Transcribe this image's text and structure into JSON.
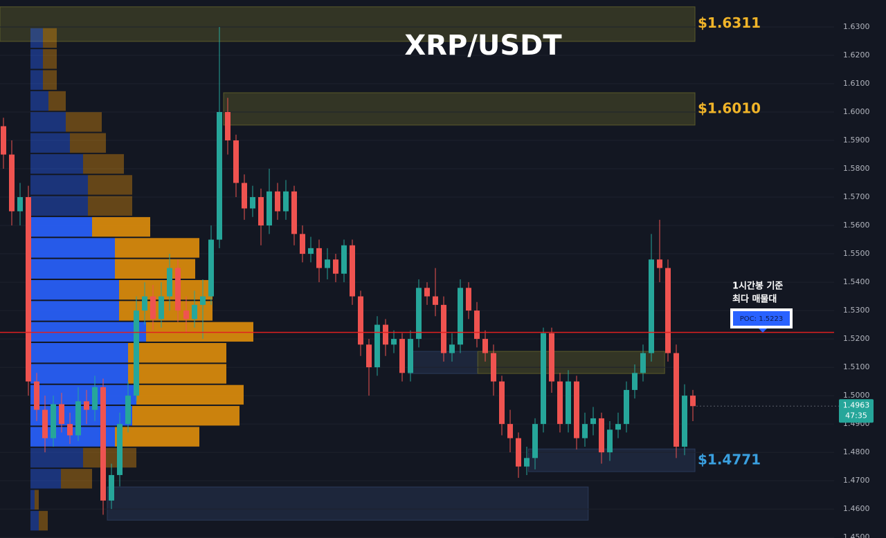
{
  "chart_data": {
    "type": "candlestick",
    "title": "XRP/USDT",
    "ylim": [
      1.4498,
      1.6395
    ],
    "yticks": [
      {
        "value": 1.45,
        "label": "1.4500"
      },
      {
        "value": 1.46,
        "label": "1.4600"
      },
      {
        "value": 1.47,
        "label": "1.4700"
      },
      {
        "value": 1.48,
        "label": "1.4800"
      },
      {
        "value": 1.49,
        "label": "1.4900"
      },
      {
        "value": 1.5,
        "label": "1.5000"
      },
      {
        "value": 1.51,
        "label": "1.5100"
      },
      {
        "value": 1.52,
        "label": "1.5200"
      },
      {
        "value": 1.53,
        "label": "1.5300"
      },
      {
        "value": 1.54,
        "label": "1.5400"
      },
      {
        "value": 1.55,
        "label": "1.5500"
      },
      {
        "value": 1.56,
        "label": "1.5600"
      },
      {
        "value": 1.57,
        "label": "1.5700"
      },
      {
        "value": 1.58,
        "label": "1.5800"
      },
      {
        "value": 1.59,
        "label": "1.5900"
      },
      {
        "value": 1.6,
        "label": "1.6000"
      },
      {
        "value": 1.61,
        "label": "1.6100"
      },
      {
        "value": 1.62,
        "label": "1.6200"
      },
      {
        "value": 1.63,
        "label": "1.6300"
      }
    ],
    "grid": true,
    "up_color": "#26a69a",
    "down_color": "#ef5350",
    "open": [
      1.595,
      1.585,
      1.565,
      1.57,
      1.505,
      1.495,
      1.485,
      1.497,
      1.49,
      1.486,
      1.498,
      1.495,
      1.503,
      1.463,
      1.472,
      1.49,
      1.5,
      1.53,
      1.535,
      1.527,
      1.535,
      1.545,
      1.53,
      1.527,
      1.532,
      1.535,
      1.555,
      1.6,
      1.59,
      1.575,
      1.566,
      1.57,
      1.56,
      1.572,
      1.565,
      1.572,
      1.557,
      1.55,
      1.552,
      1.545,
      1.548,
      1.543,
      1.553,
      1.535,
      1.518,
      1.51,
      1.525,
      1.518,
      1.52,
      1.508,
      1.52,
      1.538,
      1.535,
      1.532,
      1.515,
      1.518,
      1.538,
      1.53,
      1.52,
      1.515,
      1.505,
      1.49,
      1.485,
      1.475,
      1.478,
      1.49,
      1.522,
      1.505,
      1.49,
      1.505,
      1.485,
      1.49,
      1.492,
      1.48,
      1.488,
      1.49,
      1.502,
      1.508,
      1.515,
      1.548,
      1.545,
      1.515,
      1.482,
      1.5
    ],
    "high": [
      1.598,
      1.59,
      1.575,
      1.574,
      1.508,
      1.5,
      1.5,
      1.501,
      1.494,
      1.503,
      1.502,
      1.507,
      1.506,
      1.476,
      1.494,
      1.505,
      1.535,
      1.54,
      1.539,
      1.54,
      1.55,
      1.548,
      1.535,
      1.537,
      1.541,
      1.56,
      1.63,
      1.605,
      1.592,
      1.578,
      1.574,
      1.573,
      1.58,
      1.575,
      1.576,
      1.574,
      1.56,
      1.556,
      1.555,
      1.552,
      1.55,
      1.555,
      1.555,
      1.537,
      1.52,
      1.528,
      1.527,
      1.523,
      1.522,
      1.523,
      1.541,
      1.54,
      1.545,
      1.535,
      1.522,
      1.541,
      1.54,
      1.533,
      1.523,
      1.518,
      1.507,
      1.495,
      1.487,
      1.482,
      1.492,
      1.524,
      1.524,
      1.508,
      1.509,
      1.507,
      1.494,
      1.496,
      1.494,
      1.491,
      1.494,
      1.505,
      1.511,
      1.518,
      1.557,
      1.562,
      1.548,
      1.518,
      1.504,
      1.502
    ],
    "low": [
      1.58,
      1.56,
      1.56,
      1.5,
      1.491,
      1.48,
      1.482,
      1.487,
      1.483,
      1.484,
      1.49,
      1.491,
      1.458,
      1.46,
      1.468,
      1.487,
      1.498,
      1.525,
      1.523,
      1.524,
      1.53,
      1.526,
      1.522,
      1.524,
      1.52,
      1.532,
      1.552,
      1.585,
      1.57,
      1.562,
      1.563,
      1.553,
      1.557,
      1.562,
      1.562,
      1.553,
      1.547,
      1.547,
      1.54,
      1.541,
      1.54,
      1.54,
      1.532,
      1.514,
      1.5,
      1.507,
      1.514,
      1.515,
      1.505,
      1.505,
      1.517,
      1.532,
      1.528,
      1.512,
      1.512,
      1.515,
      1.527,
      1.517,
      1.512,
      1.5,
      1.486,
      1.48,
      1.471,
      1.472,
      1.474,
      1.487,
      1.501,
      1.487,
      1.487,
      1.481,
      1.482,
      1.486,
      1.476,
      1.477,
      1.485,
      1.487,
      1.499,
      1.505,
      1.512,
      1.54,
      1.512,
      1.478,
      1.479,
      1.491
    ],
    "close": [
      1.585,
      1.565,
      1.57,
      1.505,
      1.495,
      1.485,
      1.497,
      1.49,
      1.486,
      1.498,
      1.495,
      1.503,
      1.463,
      1.472,
      1.49,
      1.5,
      1.53,
      1.535,
      1.527,
      1.535,
      1.545,
      1.53,
      1.527,
      1.532,
      1.535,
      1.555,
      1.6,
      1.59,
      1.575,
      1.566,
      1.57,
      1.56,
      1.572,
      1.565,
      1.572,
      1.557,
      1.55,
      1.552,
      1.545,
      1.548,
      1.543,
      1.553,
      1.535,
      1.518,
      1.51,
      1.525,
      1.518,
      1.52,
      1.508,
      1.52,
      1.538,
      1.535,
      1.532,
      1.515,
      1.518,
      1.538,
      1.53,
      1.52,
      1.515,
      1.505,
      1.49,
      1.485,
      1.475,
      1.478,
      1.49,
      1.522,
      1.505,
      1.49,
      1.505,
      1.485,
      1.49,
      1.492,
      1.48,
      1.488,
      1.49,
      1.502,
      1.508,
      1.515,
      1.548,
      1.545,
      1.515,
      1.482,
      1.5,
      1.4963
    ],
    "volume_profile": {
      "bins": [
        1.6298,
        1.6224,
        1.615,
        1.6076,
        1.6002,
        1.5928,
        1.5854,
        1.578,
        1.5706,
        1.5632,
        1.5558,
        1.5484,
        1.541,
        1.5336,
        1.5262,
        1.5188,
        1.5114,
        1.504,
        1.4966,
        1.4892,
        1.4818,
        1.4744,
        1.467,
        1.4596,
        1.4522
      ],
      "up": [
        18,
        18,
        18,
        26,
        51,
        57,
        76,
        83,
        83,
        89,
        122,
        122,
        128,
        128,
        167,
        141,
        141,
        153,
        147,
        122,
        76,
        44,
        6,
        12
      ],
      "down": [
        20,
        20,
        20,
        25,
        52,
        52,
        59,
        64,
        64,
        84,
        122,
        116,
        135,
        135,
        155,
        142,
        142,
        155,
        155,
        122,
        77,
        45,
        6,
        13
      ],
      "up_color": "#2962ff",
      "down_color": "#e08e0b",
      "value_area": [
        1.4818,
        1.5632
      ]
    },
    "zones": [
      {
        "top": 1.6371,
        "bottom": 1.6249,
        "from": -0.5,
        "to": 83.25,
        "color": "#5a5a2a",
        "price": {
          "value": 1.6311,
          "label": "$1.6311"
        },
        "label_color": "#f0b429"
      },
      {
        "top": 1.6068,
        "bottom": 1.5954,
        "from": 26.5,
        "to": 83.25,
        "color": "#5a5a2a",
        "price": {
          "value": 1.601,
          "label": "$1.6010"
        },
        "label_color": "#f0b429"
      },
      {
        "top": 1.5156,
        "bottom": 1.5078,
        "from": 48.75,
        "to": 57.1,
        "color": "#2a3a5a"
      },
      {
        "top": 1.5156,
        "bottom": 1.5078,
        "from": 57.1,
        "to": 79.6,
        "color": "#5a5a2a"
      },
      {
        "top": 1.4812,
        "bottom": 1.4732,
        "from": 63.2,
        "to": 83.25,
        "color": "#2a3a5a",
        "price": {
          "value": 1.4771,
          "label": "$1.4771"
        },
        "label_color": "#3aa0e0"
      },
      {
        "top": 1.4678,
        "bottom": 1.4561,
        "from": 12.5,
        "to": 70.4,
        "color": "#2a3a5a"
      }
    ],
    "poc": {
      "value": 1.5223,
      "label": "POC: 1.5223"
    },
    "poc_color": "#e02020",
    "annotation": [
      "1시간봉 기준",
      "최다 매물대"
    ],
    "last_price": 1.4963,
    "countdown": "47:35"
  }
}
